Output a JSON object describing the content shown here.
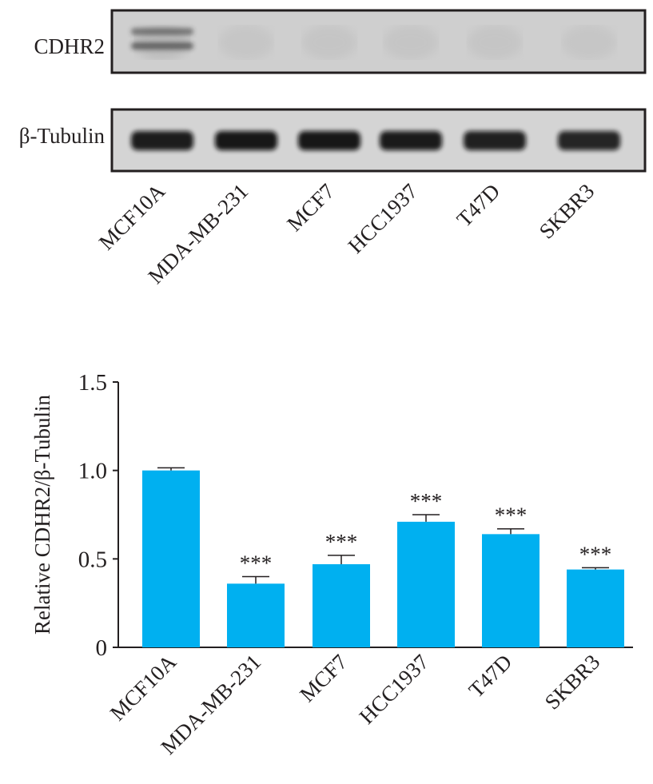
{
  "blot": {
    "samples": [
      "MCF10A",
      "MDA-MB-231",
      "MCF7",
      "HCC1937",
      "T47D",
      "SKBR3"
    ],
    "rows": [
      {
        "label": "CDHR2",
        "intensity": [
          0.55,
          0.04,
          0.05,
          0.08,
          0.05,
          0.04
        ]
      },
      {
        "label": "β-Tubulin",
        "intensity": [
          0.92,
          0.95,
          0.95,
          0.93,
          0.9,
          0.88
        ]
      }
    ]
  },
  "chart_data": {
    "type": "bar",
    "categories": [
      "MCF10A",
      "MDA-MB-231",
      "MCF7",
      "HCC1937",
      "T47D",
      "SKBR3"
    ],
    "values": [
      1.0,
      0.36,
      0.47,
      0.71,
      0.64,
      0.44
    ],
    "errors": [
      0.015,
      0.04,
      0.05,
      0.04,
      0.03,
      0.01
    ],
    "annotations": [
      "",
      "***",
      "***",
      "***",
      "***",
      "***"
    ],
    "title": "",
    "xlabel": "",
    "ylabel": "Relative CDHR2/β-Tubulin",
    "ylim": [
      0,
      1.5
    ],
    "yticks": [
      0,
      0.5,
      1.0,
      1.5
    ],
    "ytick_labels": [
      "0",
      "0.5",
      "1.0",
      "1.5"
    ],
    "grid": false,
    "colors": {
      "bar": "#00b0f0",
      "axis": "#231f20",
      "band": "#161616",
      "membrane": "#cfcfcf"
    }
  }
}
